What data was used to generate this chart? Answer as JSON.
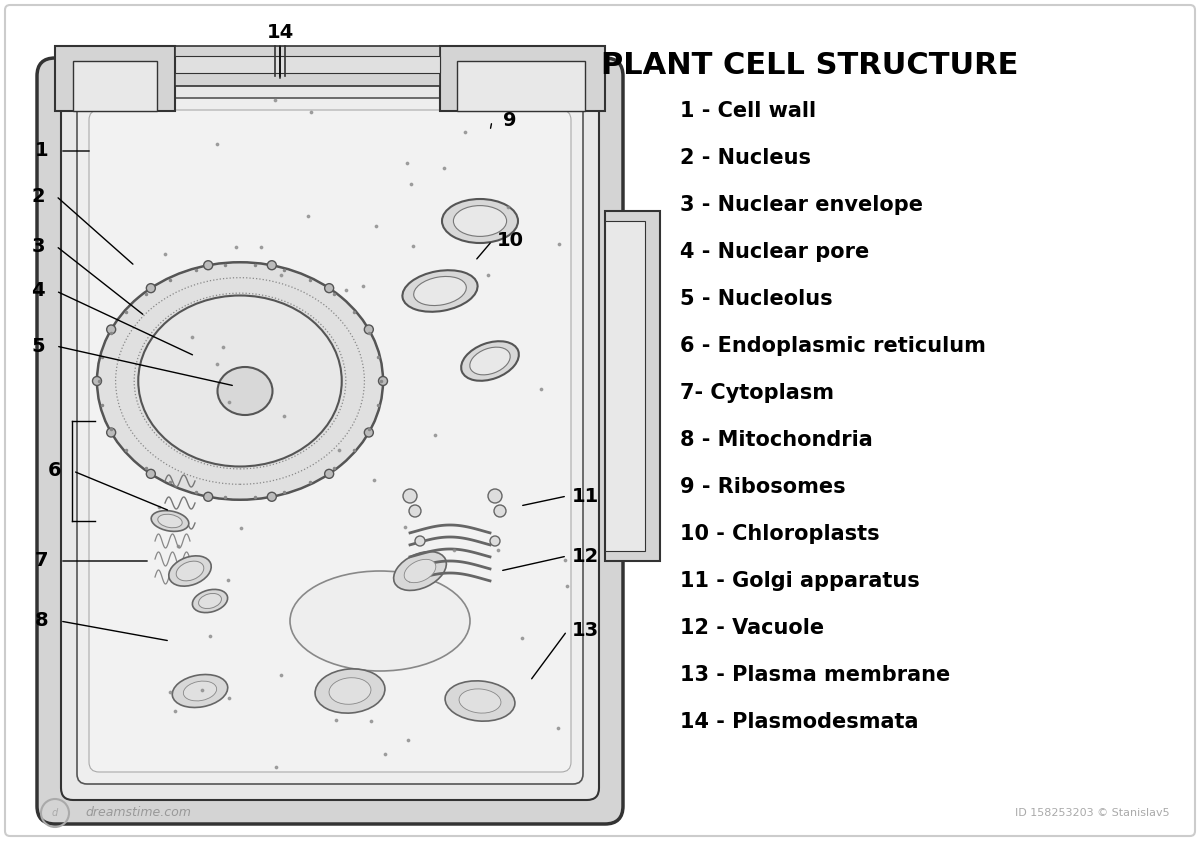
{
  "title": "PLANT CELL STRUCTURE",
  "background_color": "#ffffff",
  "border_color": "#cccccc",
  "cell_color": "#f0f0f0",
  "outline_color": "#333333",
  "legend_items": [
    "1 - Cell wall",
    "2 - Nucleus",
    "3 - Nuclear envelope",
    "4 - Nuclear pore",
    "5 - Nucleolus",
    "6 - Endoplasmic reticulum",
    "7- Cytoplasm",
    "8 - Mitochondria",
    "9 - Ribosomes",
    "10 - Chloroplasts",
    "11 - Golgi apparatus",
    "12 - Vacuole",
    "13 - Plasma membrane",
    "14 - Plasmodesmata"
  ],
  "watermark_left": "dreamstime.com",
  "watermark_right": "ID 158253203 © Stanislav5",
  "title_fontsize": 22,
  "legend_fontsize": 15,
  "label_fontsize": 14
}
